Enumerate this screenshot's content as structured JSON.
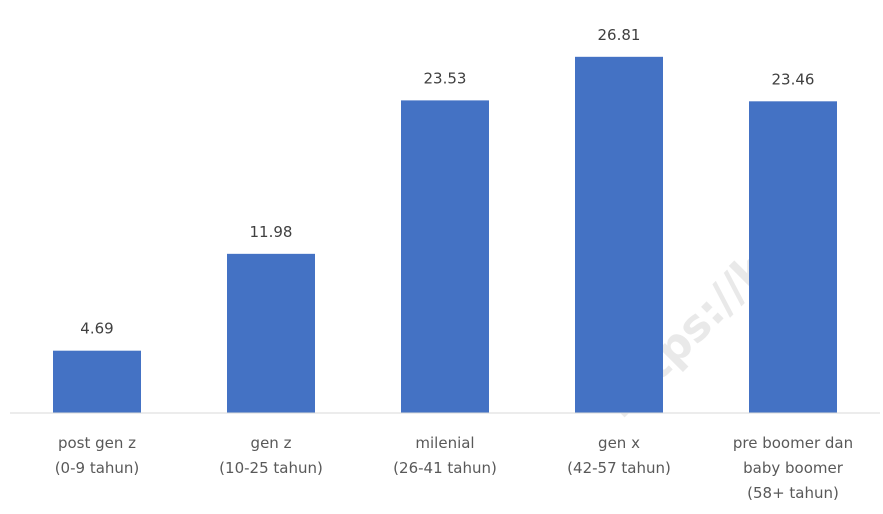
{
  "chart_data": {
    "type": "bar",
    "categories": [
      [
        "post gen z",
        "(0-9 tahun)"
      ],
      [
        "gen z",
        "(10-25 tahun)"
      ],
      [
        "milenial",
        "(26-41 tahun)"
      ],
      [
        "gen x",
        "(42-57 tahun)"
      ],
      [
        "pre boomer dan",
        "baby boomer",
        "(58+ tahun)"
      ]
    ],
    "values": [
      4.69,
      11.98,
      23.53,
      26.81,
      23.46
    ],
    "value_labels": [
      "4.69",
      "11.98",
      "23.53",
      "26.81",
      "23.46"
    ],
    "title": "",
    "xlabel": "",
    "ylabel": "",
    "ylim": [
      0,
      28
    ],
    "grid": false,
    "legend": "none",
    "bar_color": "#4472c4",
    "axis_color": "#d9d9d9"
  },
  "watermark": "https://kupa"
}
